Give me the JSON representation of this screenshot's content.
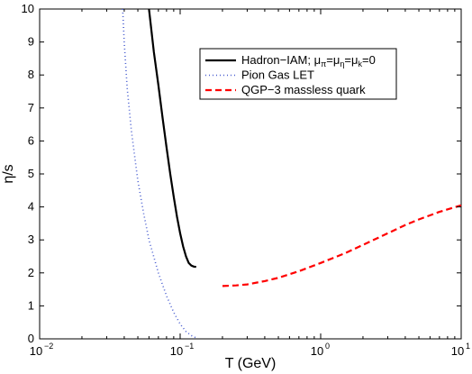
{
  "chart_data": {
    "type": "line",
    "xlabel": "T (GeV)",
    "ylabel": "η/s",
    "x_scale": "log",
    "xlim": [
      0.01,
      10
    ],
    "ylim": [
      0,
      10
    ],
    "x_ticks": [
      {
        "value": 0.01,
        "base": "10",
        "exp": "−2"
      },
      {
        "value": 0.1,
        "base": "10",
        "exp": "−1"
      },
      {
        "value": 1,
        "base": "10",
        "exp": "0"
      },
      {
        "value": 10,
        "base": "10",
        "exp": "1"
      }
    ],
    "y_ticks": [
      0,
      1,
      2,
      3,
      4,
      5,
      6,
      7,
      8,
      9,
      10
    ],
    "grid": false,
    "legend_position": "top-right",
    "series": [
      {
        "legend_parts": [
          {
            "text": "Hadron−IAM; μ",
            "sub": false
          },
          {
            "text": "π",
            "sub": true
          },
          {
            "text": "=μ",
            "sub": false
          },
          {
            "text": "η",
            "sub": true
          },
          {
            "text": "=μ",
            "sub": false
          },
          {
            "text": "k",
            "sub": true
          },
          {
            "text": "=0",
            "sub": false
          }
        ],
        "color": "#000000",
        "style": "solid",
        "x": [
          0.06,
          0.065,
          0.07,
          0.075,
          0.08,
          0.085,
          0.09,
          0.095,
          0.1,
          0.105,
          0.11,
          0.115,
          0.12,
          0.125,
          0.13
        ],
        "y": [
          10.0,
          8.7,
          7.7,
          6.7,
          5.8,
          5.0,
          4.3,
          3.7,
          3.2,
          2.8,
          2.5,
          2.3,
          2.22,
          2.19,
          2.18
        ]
      },
      {
        "name": "Pion Gas LET",
        "color": "#4a5fd0",
        "style": "dotted",
        "x": [
          0.039,
          0.04,
          0.042,
          0.045,
          0.05,
          0.055,
          0.06,
          0.07,
          0.08,
          0.09,
          0.1,
          0.11,
          0.12,
          0.13
        ],
        "y": [
          10.0,
          9.0,
          7.6,
          6.3,
          4.8,
          3.8,
          3.0,
          2.0,
          1.3,
          0.8,
          0.45,
          0.22,
          0.1,
          0.03
        ]
      },
      {
        "name": "QGP−3 massless quark",
        "color": "#ff0000",
        "style": "dashed",
        "x": [
          0.2,
          0.25,
          0.3,
          0.4,
          0.5,
          0.7,
          1.0,
          1.5,
          2.0,
          3.0,
          4.0,
          5.0,
          7.0,
          10.0
        ],
        "y": [
          1.6,
          1.62,
          1.65,
          1.75,
          1.85,
          2.05,
          2.3,
          2.6,
          2.85,
          3.2,
          3.45,
          3.62,
          3.85,
          4.05
        ]
      }
    ]
  }
}
